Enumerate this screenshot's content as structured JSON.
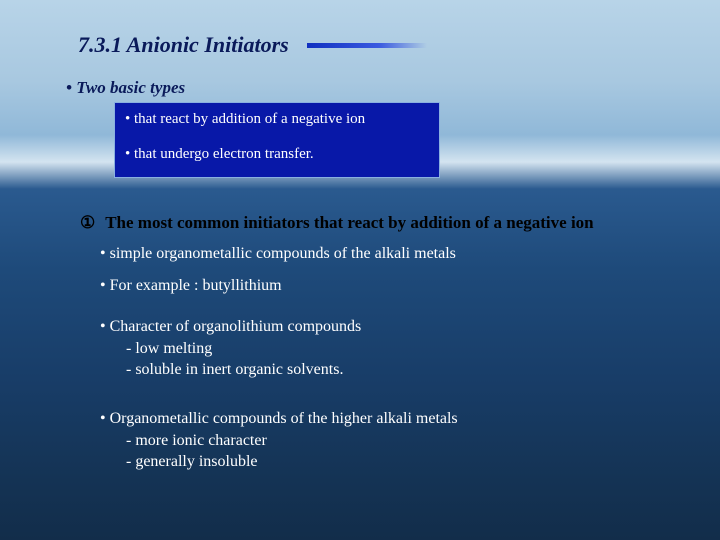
{
  "title": "7.3.1 Anionic Initiators",
  "subtitle": "• Two basic types",
  "bluebox": {
    "line1": "•  that react by addition of a negative ion",
    "line2": "•  that undergo electron transfer."
  },
  "section": {
    "marker": "①",
    "text": "The most common initiators that react by addition of a negative ion"
  },
  "body": {
    "b1": "• simple organometallic compounds of the alkali metals",
    "b2": "• For example : butyllithium",
    "b3_head": "• Character of organolithium compounds",
    "b3_sub1": "- low melting",
    "b3_sub2": "- soluble in inert organic solvents.",
    "b4_head": "• Organometallic compounds of the higher alkali metals",
    "b4_sub1": "- more ionic character",
    "b4_sub2": "- generally insoluble"
  },
  "colors": {
    "title_color": "#0a1a5a",
    "bluebox_bg": "#0818a8",
    "body_text": "#ffffff",
    "section_head": "#000000"
  }
}
